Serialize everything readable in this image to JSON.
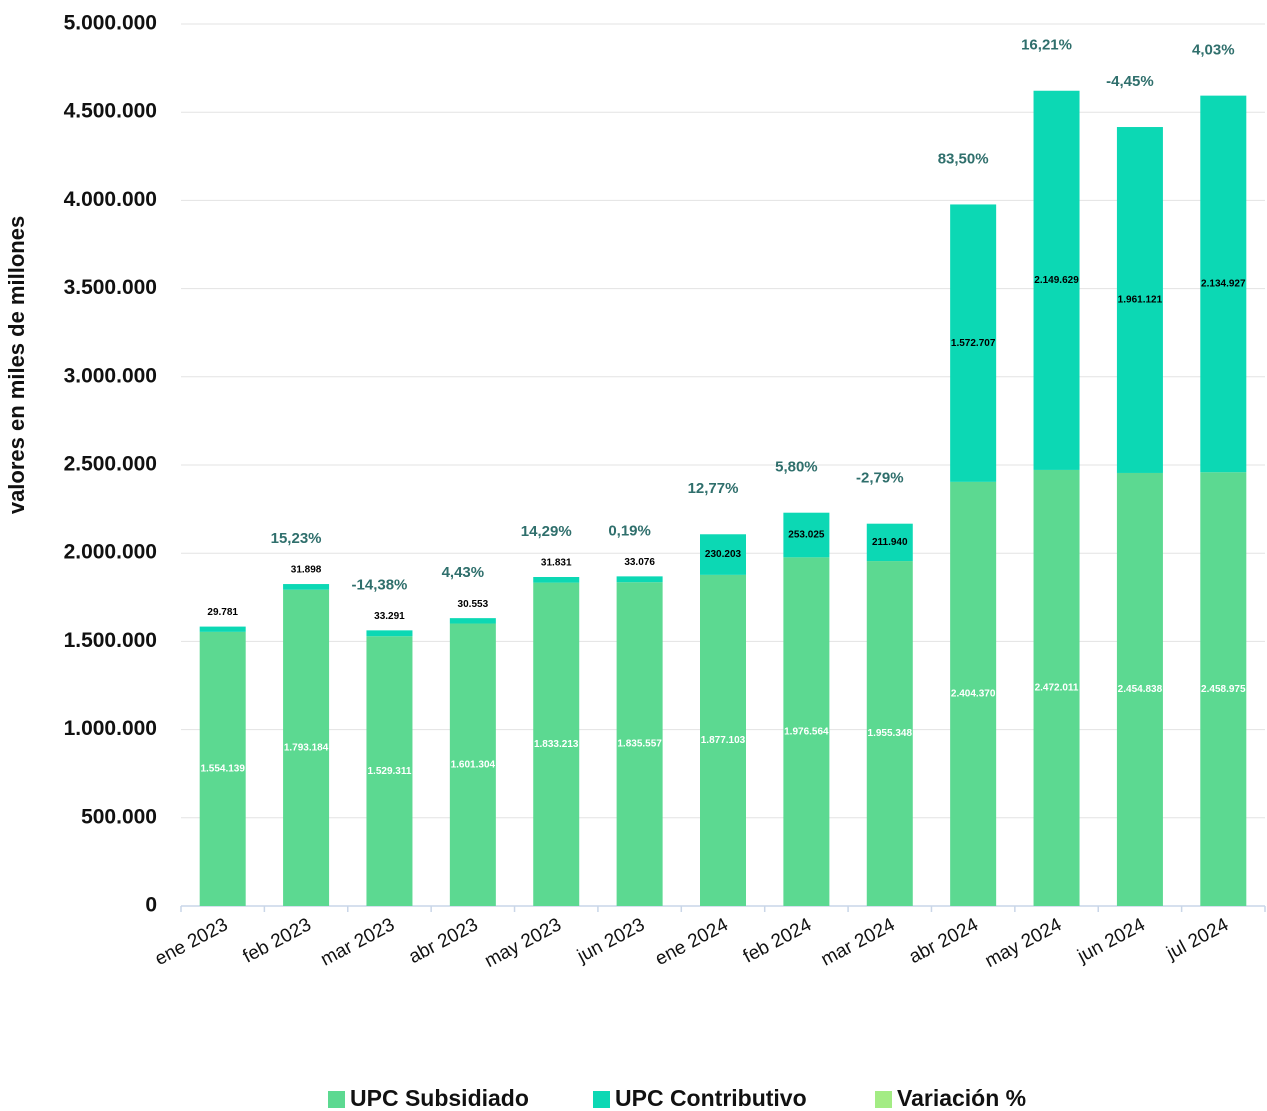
{
  "chart_data": {
    "type": "bar",
    "stacked": true,
    "y_axis_label": "valores en miles de millones",
    "categories": [
      "ene 2023",
      "feb 2023",
      "mar 2023",
      "abr 2023",
      "may 2023",
      "jun 2023",
      "ene 2024",
      "feb 2024",
      "mar 2024",
      "abr 2024",
      "may 2024",
      "jun 2024",
      "jul 2024"
    ],
    "series": [
      {
        "name": "UPC Subsidiado",
        "color": "#5cd991",
        "values": [
          1554139,
          1793184,
          1529311,
          1601304,
          1833213,
          1835557,
          1877103,
          1976564,
          1955348,
          2404370,
          2472011,
          2454838,
          2458975
        ],
        "value_labels": [
          "1.554.139",
          "1.793.184",
          "1.529.311",
          "1.601.304",
          "1.833.213",
          "1.835.557",
          "1.877.103",
          "1.976.564",
          "1.955.348",
          "2.404.370",
          "2.472.011",
          "2.454.838",
          "2.458.975"
        ]
      },
      {
        "name": "UPC Contributivo",
        "color": "#0cd8b4",
        "values": [
          29781,
          31898,
          33291,
          30553,
          31831,
          33076,
          230203,
          253025,
          211940,
          1572707,
          2149629,
          1961121,
          2134927
        ],
        "value_labels": [
          "29.781",
          "31.898",
          "33.291",
          "30.553",
          "31.831",
          "33.076",
          "230.203",
          "253.025",
          "211.940",
          "1.572.707",
          "2.149.629",
          "1.961.121",
          "2.134.927"
        ]
      },
      {
        "name": "Variación %",
        "color": "#a3ec84",
        "kind": "label",
        "values": [
          null,
          15.23,
          -14.38,
          4.43,
          14.29,
          0.19,
          12.77,
          5.8,
          -2.79,
          83.5,
          16.21,
          -4.45,
          4.03
        ],
        "value_labels": [
          null,
          "15,23%",
          "-14,38%",
          "4,43%",
          "14,29%",
          "0,19%",
          "12,77%",
          "5,80%",
          "-2,79%",
          "83,50%",
          "16,21%",
          "-4,45%",
          "4,03%"
        ]
      }
    ],
    "ylim": [
      0,
      5000000
    ],
    "yticks": [
      0,
      {
        "value": 500000,
        "label": "500.000"
      },
      {
        "value": 1000000,
        "label": "1.000.000"
      },
      {
        "value": 1500000,
        "label": "1.500.000"
      },
      {
        "value": 2000000,
        "label": "2.000.000"
      },
      {
        "value": 2500000,
        "label": "2.500.000"
      },
      {
        "value": 3000000,
        "label": "3.000.000"
      },
      {
        "value": 3500000,
        "label": "3.500.000"
      },
      {
        "value": 4000000,
        "label": "4.000.000"
      },
      {
        "value": 4500000,
        "label": "4.500.000"
      },
      {
        "value": 5000000,
        "label": "5.000.000"
      }
    ],
    "grid": true,
    "legend": "bottom"
  }
}
